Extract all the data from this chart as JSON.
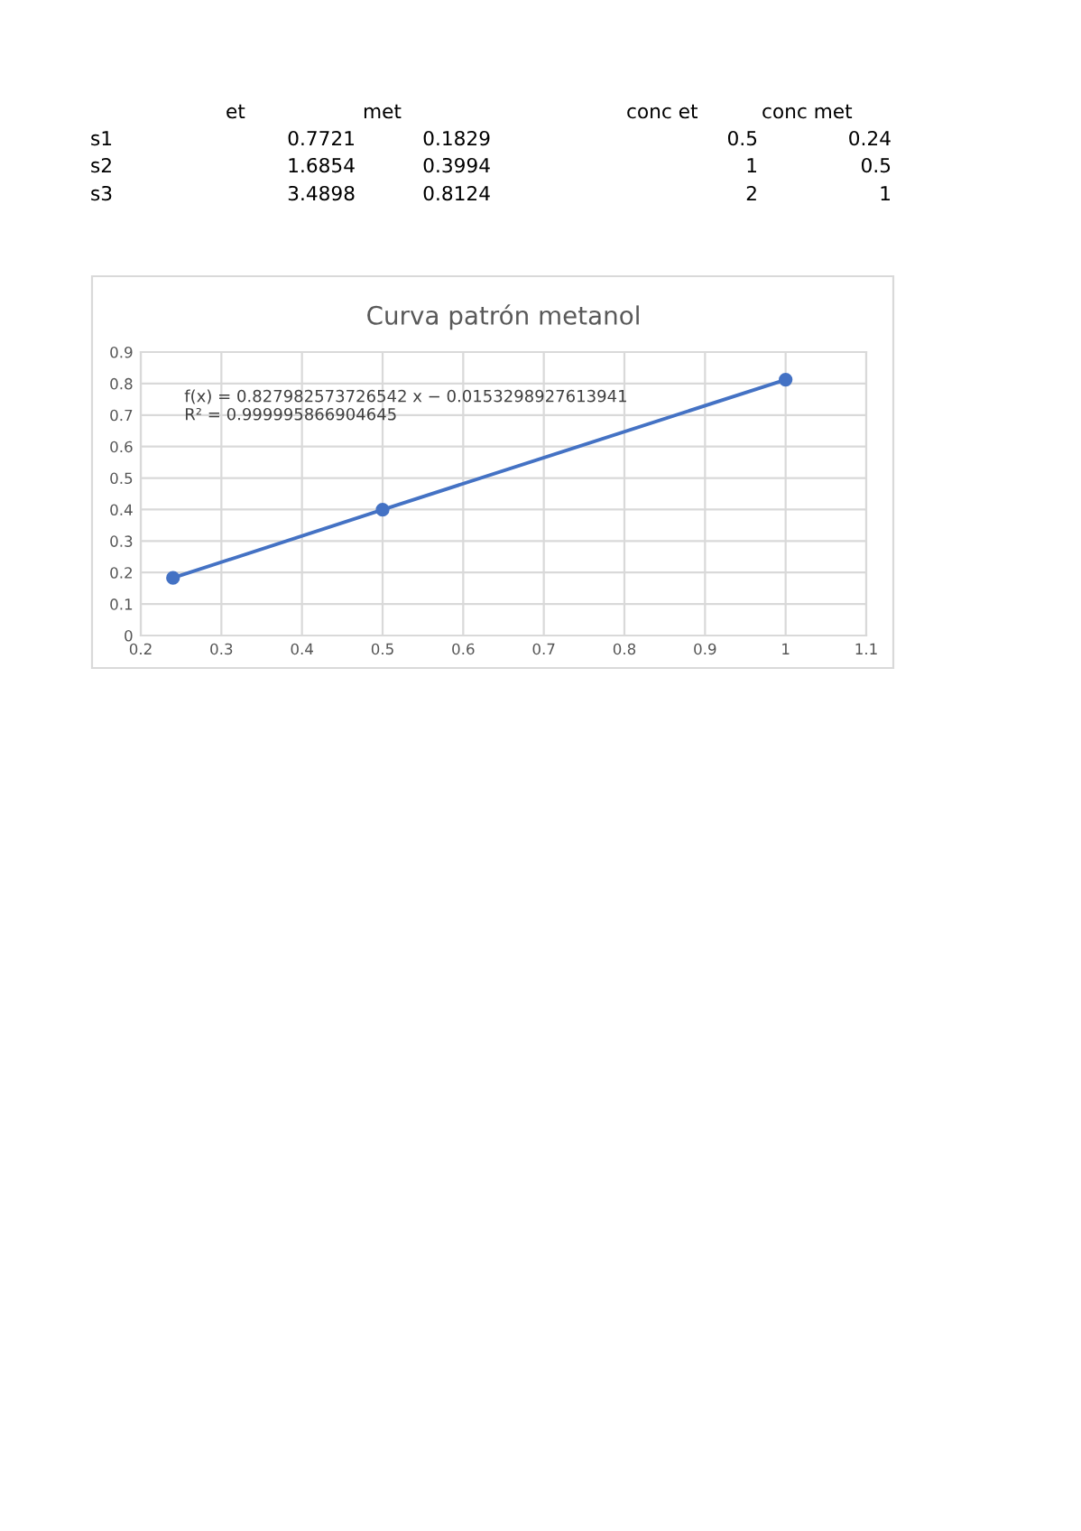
{
  "chart_data": [
    {
      "type": "other",
      "categories": [
        "et",
        "met",
        "conc et",
        "conc met"
      ],
      "y_categories": [
        "s1",
        "s2",
        "s3"
      ],
      "cell_labels": [
        [
          "0.7721",
          "0.1829",
          "0.5",
          "0.24"
        ],
        [
          "1.6854",
          "0.3994",
          "1",
          "0.5"
        ],
        [
          "3.4898",
          "0.8124",
          "2",
          "1"
        ]
      ]
    },
    {
      "type": "line",
      "title": "Curva patrón metanol",
      "x": [
        0.24,
        0.5,
        1
      ],
      "series": [
        {
          "color": "#4472c4",
          "values": [
            0.1829,
            0.3994,
            0.8124
          ]
        }
      ],
      "xlim": [
        0.2,
        1.1
      ],
      "xticks": [
        0.2,
        0.3,
        0.4,
        0.5,
        0.6,
        0.7,
        0.8,
        0.9,
        1,
        1.1
      ],
      "ylim": [
        0,
        0.9
      ],
      "yticks": [
        0,
        0.1,
        0.2,
        0.3,
        0.4,
        0.5,
        0.6,
        0.7,
        0.8,
        0.9
      ],
      "grid": true,
      "marker": "circle",
      "line_style": "solid",
      "annotations": [
        "f(x) = 0.827982573726542 x − 0.0153298927613941",
        "R² = 0.999995866904645"
      ]
    }
  ]
}
